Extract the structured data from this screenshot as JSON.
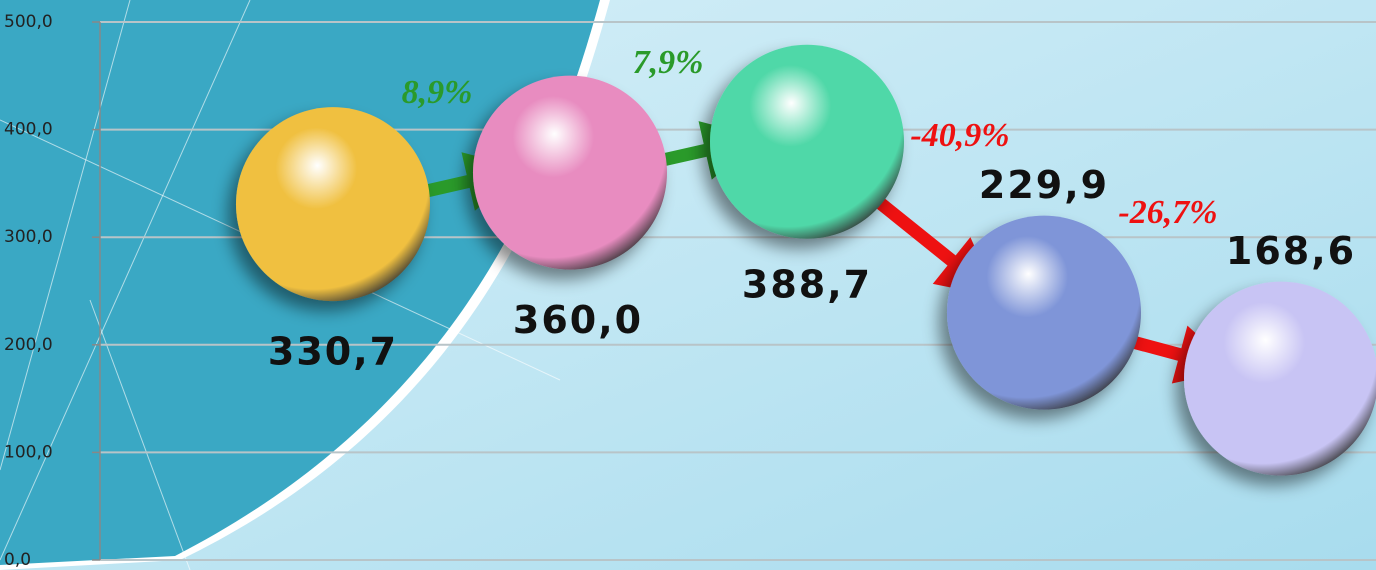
{
  "chart_data": {
    "type": "sphere",
    "values": [
      330.7,
      360.0,
      388.7,
      229.9,
      168.6
    ],
    "value_labels": [
      "330,7",
      "360,0",
      "388,7",
      "229,9",
      "168,6"
    ],
    "colors": [
      "#f0c040",
      "#e88cc0",
      "#50d8a8",
      "#7f95d8",
      "#c8c4f4"
    ],
    "ylim": [
      0,
      500
    ],
    "yticks": [
      {
        "value": 0,
        "label": "0,0"
      },
      {
        "value": 100,
        "label": "100,0"
      },
      {
        "value": 200,
        "label": "200,0"
      },
      {
        "value": 300,
        "label": "300,0"
      },
      {
        "value": 400,
        "label": "400,0"
      },
      {
        "value": 500,
        "label": "500,0"
      }
    ],
    "grid": true,
    "annotations": [
      {
        "text": "8,9%",
        "color": "#2a9a2a"
      },
      {
        "text": "7,9%",
        "color": "#2a9a2a"
      },
      {
        "text": "-40,9%",
        "color": "#ee1111"
      },
      {
        "text": "-26,7%",
        "color": "#ee1111"
      }
    ]
  }
}
